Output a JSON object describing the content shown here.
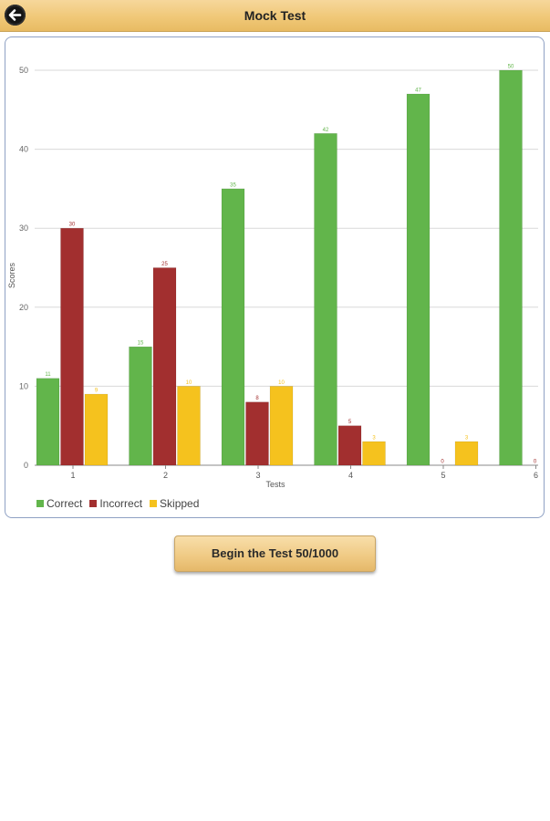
{
  "header": {
    "title": "Mock Test",
    "back_icon": "back-arrow-icon"
  },
  "chart_data": {
    "type": "bar",
    "xlabel": "Tests",
    "ylabel": "Scores",
    "categories": [
      "1",
      "2",
      "3",
      "4",
      "5",
      "6"
    ],
    "ylim": [
      0,
      50
    ],
    "yticks": [
      0,
      10,
      20,
      30,
      40,
      50
    ],
    "grid": true,
    "legend_position": "bottom-left",
    "series": [
      {
        "name": "Correct",
        "color": "#62b54b",
        "values": [
          11,
          15,
          35,
          42,
          47,
          50
        ]
      },
      {
        "name": "Incorrect",
        "color": "#a22f2f",
        "values": [
          30,
          25,
          8,
          5,
          0,
          0
        ]
      },
      {
        "name": "Skipped",
        "color": "#f5c21e",
        "values": [
          9,
          10,
          10,
          3,
          3,
          null
        ]
      }
    ]
  },
  "button": {
    "label": "Begin the Test 50/1000"
  }
}
